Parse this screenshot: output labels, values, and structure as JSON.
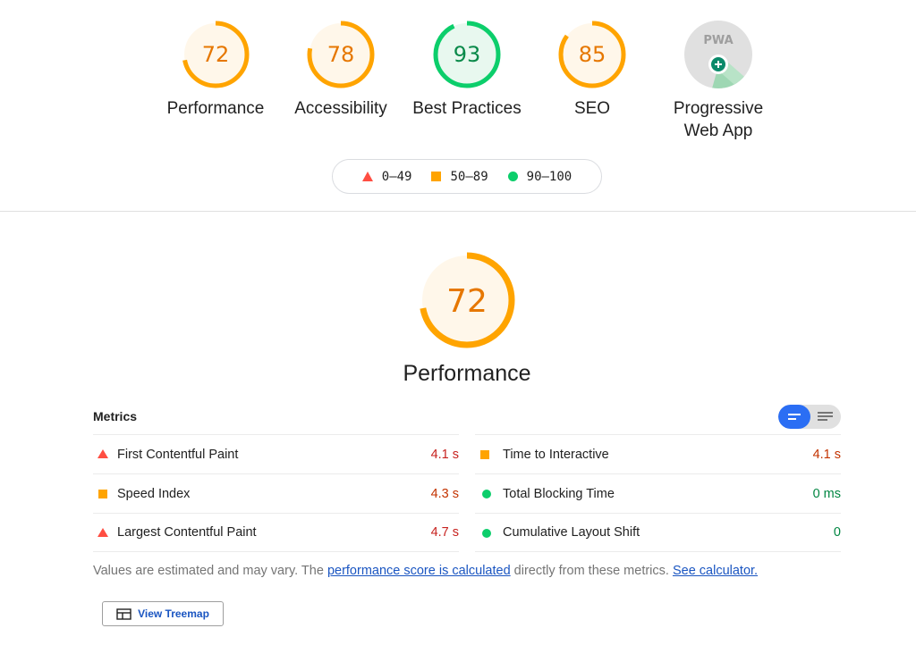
{
  "colors": {
    "fail": "#ff4e42",
    "average": "#ffa400",
    "pass": "#0cce6b",
    "average_text": "#c33300",
    "pass_text": "#018642",
    "fail_text": "#c7221f",
    "link": "#1a55c1",
    "toggle_active": "#2b6ef4"
  },
  "categories": [
    {
      "score": "72",
      "label": "Performance",
      "value": 72,
      "rating": "average"
    },
    {
      "score": "78",
      "label": "Accessibility",
      "value": 78,
      "rating": "average"
    },
    {
      "score": "93",
      "label": "Best Practices",
      "value": 93,
      "rating": "pass"
    },
    {
      "score": "85",
      "label": "SEO",
      "value": 85,
      "rating": "average"
    }
  ],
  "pwa": {
    "badge_text": "PWA",
    "label_line1": "Progressive",
    "label_line2": "Web App",
    "icon": "pwa-badge-icon"
  },
  "legend": [
    {
      "range": "0–49",
      "icon": "triangle-fail-icon"
    },
    {
      "range": "50–89",
      "icon": "square-average-icon"
    },
    {
      "range": "90–100",
      "icon": "circle-pass-icon"
    }
  ],
  "main": {
    "score": "72",
    "value": 72,
    "title": "Performance",
    "metrics_header": "Metrics"
  },
  "metrics": {
    "left": [
      {
        "name": "First Contentful Paint",
        "value": "4.1 s",
        "rating": "fail"
      },
      {
        "name": "Speed Index",
        "value": "4.3 s",
        "rating": "average"
      },
      {
        "name": "Largest Contentful Paint",
        "value": "4.7 s",
        "rating": "fail"
      }
    ],
    "right": [
      {
        "name": "Time to Interactive",
        "value": "4.1 s",
        "rating": "average"
      },
      {
        "name": "Total Blocking Time",
        "value": "0 ms",
        "rating": "pass"
      },
      {
        "name": "Cumulative Layout Shift",
        "value": "0",
        "rating": "pass"
      }
    ]
  },
  "note": {
    "prefix": "Values are estimated and may vary. The ",
    "link1": "performance score is calculated",
    "middle": " directly from these metrics. ",
    "link2": "See calculator."
  },
  "treemap_button": {
    "label": "View Treemap",
    "icon": "treemap-icon"
  }
}
